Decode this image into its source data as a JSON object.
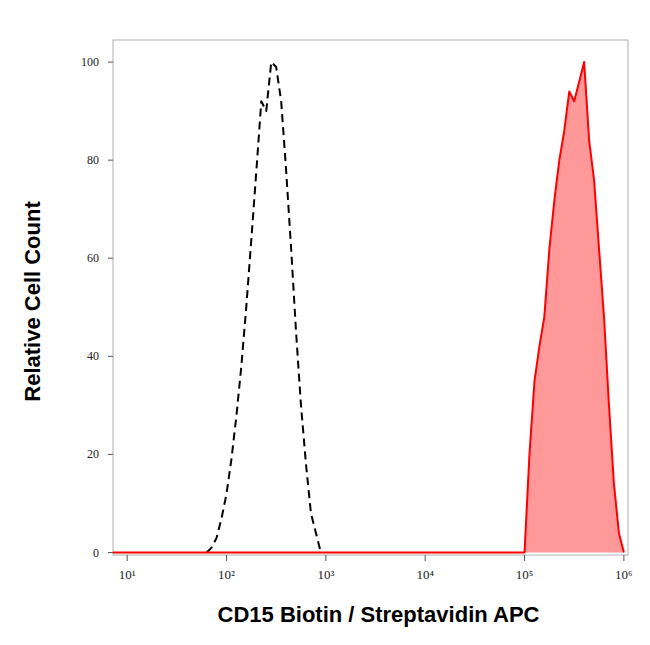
{
  "chart_data": {
    "type": "line",
    "x_label": "CD15 Biotin / Streptavidin APC",
    "y_label": "Relative Cell Count",
    "log": "x",
    "xlim": [
      7.2,
      1100000
    ],
    "ylim": [
      -0.5,
      104.5
    ],
    "xticks": [
      {
        "value": 10,
        "label": "10¹"
      },
      {
        "value": 100,
        "label": "10²"
      },
      {
        "value": 1000,
        "label": "10³"
      },
      {
        "value": 10000,
        "label": "10⁴"
      },
      {
        "value": 100000,
        "label": "10⁵"
      },
      {
        "value": 1000000,
        "label": "10⁶"
      }
    ],
    "yticks": [
      0,
      20,
      40,
      60,
      80,
      100
    ],
    "x": [
      7.2,
      63.1,
      70.8,
      79.4,
      89.1,
      100,
      112,
      126,
      141,
      158,
      178,
      200,
      224,
      251,
      282,
      316,
      355,
      398,
      447,
      501,
      562,
      631,
      708,
      794,
      891,
      100000,
      112000,
      126000,
      141000,
      158000,
      178000,
      200000,
      224000,
      251000,
      282000,
      316000,
      355000,
      398000,
      447000,
      501000,
      562000,
      631000,
      708000,
      794000,
      891000,
      1000000
    ],
    "series": [
      {
        "color": "#000000",
        "line_style": "dashed",
        "type": "line",
        "values": [
          null,
          0,
          1,
          3,
          7,
          12,
          19,
          28,
          38,
          50,
          64,
          78,
          92,
          90,
          100,
          99,
          92,
          78,
          62,
          45,
          30,
          18,
          8,
          4,
          0,
          null,
          null,
          null,
          null,
          null,
          null,
          null,
          null,
          null,
          null,
          null,
          null,
          null,
          null,
          null,
          null,
          null,
          null,
          null,
          null,
          null
        ]
      },
      {
        "color": "#ff0000",
        "line_style": "solid",
        "type": "area",
        "values": [
          0,
          0,
          0,
          0,
          0,
          0,
          0,
          0,
          0,
          0,
          0,
          0,
          0,
          0,
          0,
          0,
          0,
          0,
          0,
          0,
          0,
          0,
          0,
          0,
          0,
          0,
          20,
          35,
          42,
          48,
          62,
          72,
          80,
          86,
          94,
          92,
          96,
          100,
          84,
          76,
          62,
          48,
          30,
          14,
          4,
          0
        ]
      }
    ]
  }
}
